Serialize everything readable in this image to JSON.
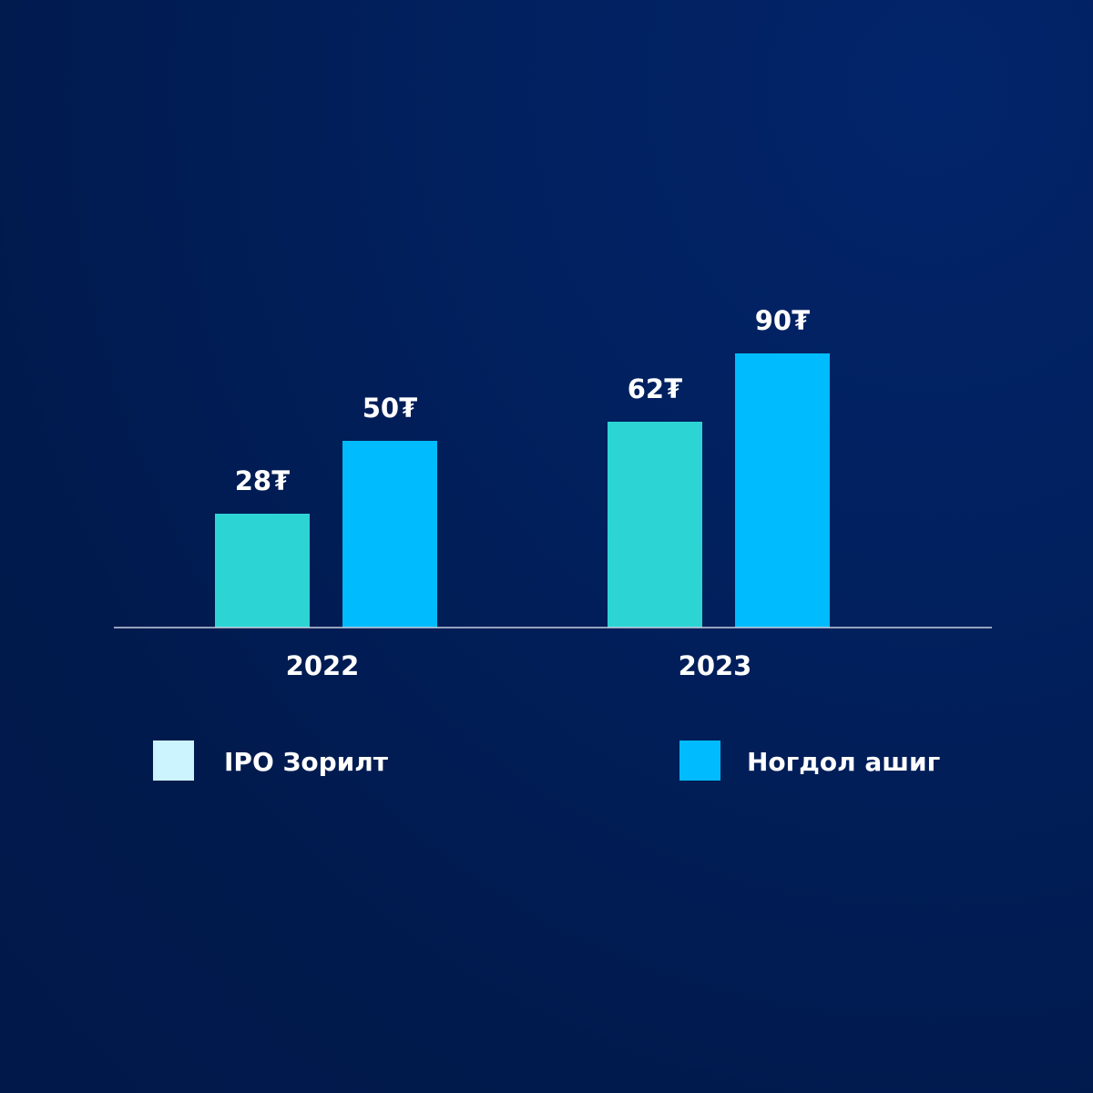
{
  "chart_data": {
    "type": "bar",
    "categories": [
      "2022",
      "2023"
    ],
    "series": [
      {
        "name": "IPO Зорилт",
        "values": [
          28,
          62
        ],
        "labels": [
          "28₮",
          "62₮"
        ]
      },
      {
        "name": "Ногдол ашиг",
        "values": [
          50,
          90
        ],
        "labels": [
          "50₮",
          "90₮"
        ]
      }
    ],
    "ylim": [
      0,
      100
    ],
    "grid": false,
    "legend_position": "bottom"
  },
  "colors": {
    "bar_series_1": "#2dd4d4",
    "bar_series_2": "#00bbfd",
    "legend_series_1": "#ccf4fe",
    "legend_series_2": "#00bbfd",
    "axis": "#c8d0e0",
    "text": "#ffffff"
  }
}
